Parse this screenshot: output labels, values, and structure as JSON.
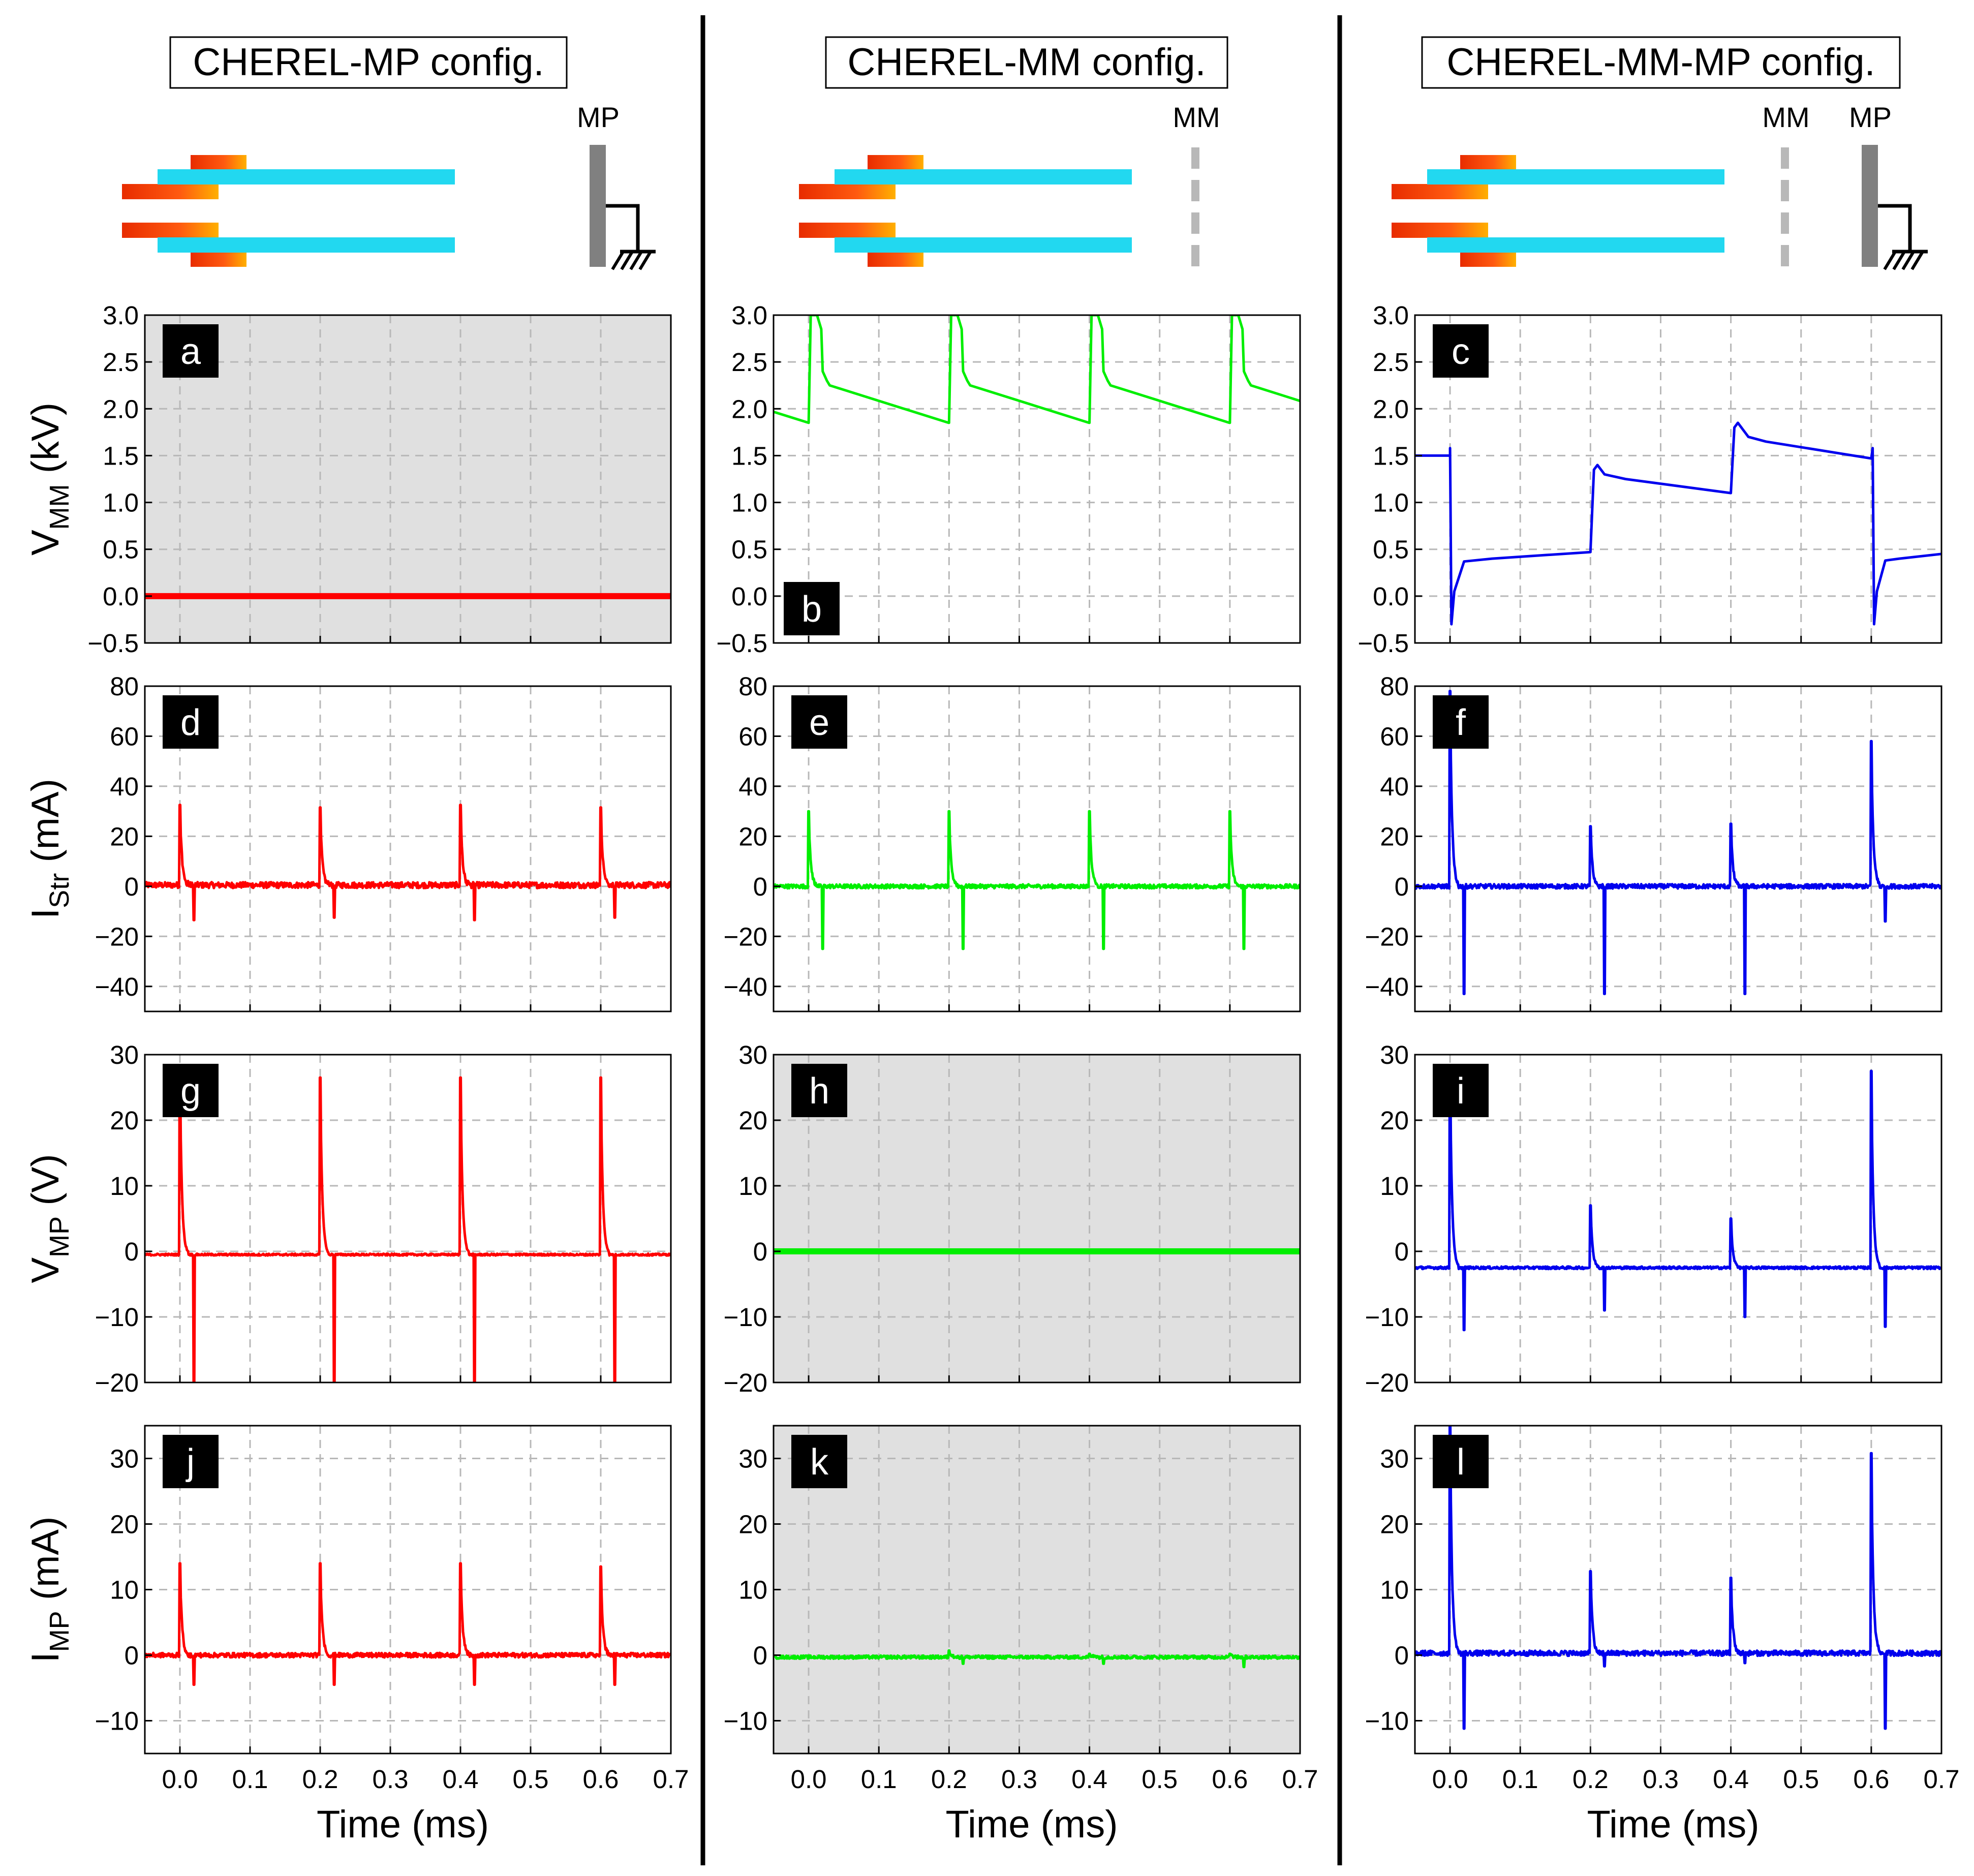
{
  "colors": {
    "mp": "#ff0000",
    "mm": "#00ee00",
    "mmmp": "#0000ee",
    "inactive_bg": "#e0e0e0",
    "grid": "#b8b8b8"
  },
  "columns": [
    {
      "title": "CHEREL-MP config.",
      "electrodes": [
        {
          "label": "MP",
          "type": "plate"
        }
      ]
    },
    {
      "title": "CHEREL-MM config.",
      "electrodes": [
        {
          "label": "MM",
          "type": "mesh"
        }
      ]
    },
    {
      "title": "CHEREL-MM-MP config.",
      "electrodes": [
        {
          "label": "MM",
          "type": "mesh"
        },
        {
          "label": "MP",
          "type": "plate"
        }
      ]
    }
  ],
  "x_axis": {
    "label": "Time (ms)",
    "range": [
      -0.05,
      0.7
    ],
    "ticks": [
      0.0,
      0.1,
      0.2,
      0.3,
      0.4,
      0.5,
      0.6,
      0.7
    ],
    "tick_labels": [
      "0.0",
      "0.1",
      "0.2",
      "0.3",
      "0.4",
      "0.5",
      "0.6",
      "0.7"
    ]
  },
  "rows": [
    {
      "ylabel_main": "V",
      "ylabel_sub": "MM",
      "ylabel_unit": " (kV)",
      "ylim": [
        -0.5,
        3.0
      ],
      "ticks": [
        -0.5,
        0.0,
        0.5,
        1.0,
        1.5,
        2.0,
        2.5,
        3.0
      ],
      "tick_labels": [
        "−0.5",
        "0.0",
        "0.5",
        "1.0",
        "1.5",
        "2.0",
        "2.5",
        "3.0"
      ]
    },
    {
      "ylabel_main": "I",
      "ylabel_sub": "Str",
      "ylabel_unit": " (mA)",
      "ylim": [
        -50,
        80
      ],
      "ticks": [
        -40,
        -20,
        0,
        20,
        40,
        60,
        80
      ],
      "tick_labels": [
        "−40",
        "−20",
        "0",
        "20",
        "40",
        "60",
        "80"
      ]
    },
    {
      "ylabel_main": "V",
      "ylabel_sub": "MP",
      "ylabel_unit": " (V)",
      "ylim": [
        -20,
        30
      ],
      "ticks": [
        -20,
        -10,
        0,
        10,
        20,
        30
      ],
      "tick_labels": [
        "−20",
        "−10",
        "0",
        "10",
        "20",
        "30"
      ]
    },
    {
      "ylabel_main": "I",
      "ylabel_sub": "MP",
      "ylabel_unit": " (mA)",
      "ylim": [
        -15,
        35
      ],
      "ticks": [
        -10,
        0,
        10,
        20,
        30
      ],
      "tick_labels": [
        "−10",
        "0",
        "10",
        "20",
        "30"
      ]
    }
  ],
  "chart_data": [
    {
      "type": "line",
      "panel": "a",
      "config": "CHEREL-MP config.",
      "ylabel": "V_MM (kV)",
      "inactive": true,
      "series": [
        {
          "name": "V_MM",
          "kind": "flat",
          "value": 0.0
        }
      ]
    },
    {
      "type": "line",
      "panel": "b",
      "config": "CHEREL-MM config.",
      "ylabel": "V_MM (kV)",
      "inactive": false,
      "series": [
        {
          "name": "V_MM",
          "kind": "sawtooth",
          "period_ms": 0.2,
          "first_pulse_ms": 0.0,
          "peak_kV": 3.0,
          "after_drop_kV": 2.25,
          "before_pulse_kV": 1.85
        }
      ]
    },
    {
      "type": "line",
      "panel": "c",
      "config": "CHEREL-MM-MP config.",
      "ylabel": "V_MM (kV)",
      "inactive": false,
      "series": [
        {
          "name": "V_MM",
          "kind": "steps",
          "points": [
            [
              -0.05,
              1.5
            ],
            [
              0.0,
              1.5
            ],
            [
              0.0,
              1.58
            ],
            [
              0.002,
              -0.3
            ],
            [
              0.006,
              0.05
            ],
            [
              0.02,
              0.37
            ],
            [
              0.06,
              0.4
            ],
            [
              0.2,
              0.47
            ],
            [
              0.205,
              1.35
            ],
            [
              0.21,
              1.4
            ],
            [
              0.22,
              1.3
            ],
            [
              0.25,
              1.25
            ],
            [
              0.4,
              1.1
            ],
            [
              0.405,
              1.8
            ],
            [
              0.41,
              1.85
            ],
            [
              0.425,
              1.7
            ],
            [
              0.45,
              1.65
            ],
            [
              0.6,
              1.47
            ],
            [
              0.602,
              1.58
            ],
            [
              0.604,
              -0.3
            ],
            [
              0.608,
              0.05
            ],
            [
              0.62,
              0.38
            ],
            [
              0.64,
              0.4
            ],
            [
              0.7,
              0.45
            ]
          ]
        }
      ]
    },
    {
      "type": "line",
      "panel": "d",
      "config": "CHEREL-MP config.",
      "ylabel": "I_Str (mA)",
      "inactive": false,
      "series": [
        {
          "name": "I_Str",
          "kind": "pulses",
          "baseline": 0.5,
          "noise": 1.2,
          "pulses": [
            {
              "t": 0.0,
              "amp": 32,
              "neg_t": 0.02,
              "neg": -14
            },
            {
              "t": 0.2,
              "amp": 31,
              "neg_t": 0.22,
              "neg": -13
            },
            {
              "t": 0.4,
              "amp": 32,
              "neg_t": 0.42,
              "neg": -14
            },
            {
              "t": 0.6,
              "amp": 31,
              "neg_t": 0.62,
              "neg": -13
            }
          ]
        }
      ]
    },
    {
      "type": "line",
      "panel": "e",
      "config": "CHEREL-MM config.",
      "ylabel": "I_Str (mA)",
      "inactive": false,
      "series": [
        {
          "name": "I_Str",
          "kind": "pulses",
          "baseline": 0.0,
          "noise": 0.8,
          "pulses": [
            {
              "t": 0.0,
              "amp": 30,
              "neg_t": 0.02,
              "neg": -25
            },
            {
              "t": 0.2,
              "amp": 30,
              "neg_t": 0.22,
              "neg": -25
            },
            {
              "t": 0.4,
              "amp": 30,
              "neg_t": 0.42,
              "neg": -25
            },
            {
              "t": 0.6,
              "amp": 30,
              "neg_t": 0.62,
              "neg": -25
            }
          ]
        }
      ]
    },
    {
      "type": "line",
      "panel": "f",
      "config": "CHEREL-MM-MP config.",
      "ylabel": "I_Str (mA)",
      "inactive": false,
      "series": [
        {
          "name": "I_Str",
          "kind": "pulses",
          "baseline": 0.0,
          "noise": 0.9,
          "pulses": [
            {
              "t": 0.0,
              "amp": 78,
              "neg_t": 0.02,
              "neg": -43
            },
            {
              "t": 0.2,
              "amp": 24,
              "neg_t": 0.22,
              "neg": -43
            },
            {
              "t": 0.4,
              "amp": 25,
              "neg_t": 0.42,
              "neg": -43
            },
            {
              "t": 0.6,
              "amp": 58,
              "neg_t": 0.62,
              "neg": -14
            }
          ]
        }
      ]
    },
    {
      "type": "line",
      "panel": "g",
      "config": "CHEREL-MP config.",
      "ylabel": "V_MP (V)",
      "inactive": false,
      "series": [
        {
          "name": "V_MP",
          "kind": "pulses",
          "baseline": -0.5,
          "noise": 0.15,
          "pulses": [
            {
              "t": 0.0,
              "amp": 27,
              "neg_t": 0.02,
              "neg": -20
            },
            {
              "t": 0.2,
              "amp": 27,
              "neg_t": 0.22,
              "neg": -20
            },
            {
              "t": 0.4,
              "amp": 27,
              "neg_t": 0.42,
              "neg": -20
            },
            {
              "t": 0.6,
              "amp": 27,
              "neg_t": 0.62,
              "neg": -20
            }
          ]
        }
      ]
    },
    {
      "type": "line",
      "panel": "h",
      "config": "CHEREL-MM config.",
      "ylabel": "V_MP (V)",
      "inactive": true,
      "series": [
        {
          "name": "V_MP",
          "kind": "flat",
          "value": 0.0
        }
      ]
    },
    {
      "type": "line",
      "panel": "i",
      "config": "CHEREL-MM-MP config.",
      "ylabel": "V_MP (V)",
      "inactive": false,
      "series": [
        {
          "name": "V_MP",
          "kind": "pulses",
          "baseline": -2.5,
          "noise": 0.2,
          "pulses": [
            {
              "t": 0.0,
              "amp": 30,
              "neg_t": 0.02,
              "neg": -9.5
            },
            {
              "t": 0.2,
              "amp": 9.5,
              "neg_t": 0.22,
              "neg": -6.5
            },
            {
              "t": 0.4,
              "amp": 7.5,
              "neg_t": 0.42,
              "neg": -7.5
            },
            {
              "t": 0.6,
              "amp": 30,
              "neg_t": 0.62,
              "neg": -9
            }
          ]
        }
      ]
    },
    {
      "type": "line",
      "panel": "j",
      "config": "CHEREL-MP config.",
      "ylabel": "I_MP (mA)",
      "inactive": false,
      "series": [
        {
          "name": "I_MP",
          "kind": "pulses",
          "baseline": 0.0,
          "noise": 0.35,
          "pulses": [
            {
              "t": 0.0,
              "amp": 14,
              "neg_t": 0.02,
              "neg": -4.5
            },
            {
              "t": 0.2,
              "amp": 14,
              "neg_t": 0.22,
              "neg": -4.5
            },
            {
              "t": 0.4,
              "amp": 14,
              "neg_t": 0.42,
              "neg": -4.5
            },
            {
              "t": 0.6,
              "amp": 13.5,
              "neg_t": 0.62,
              "neg": -4.5
            }
          ]
        }
      ]
    },
    {
      "type": "line",
      "panel": "k",
      "config": "CHEREL-MM config.",
      "ylabel": "I_MP (mA)",
      "inactive": true,
      "series": [
        {
          "name": "I_MP",
          "kind": "pulses",
          "baseline": -0.3,
          "noise": 0.25,
          "pulses": [
            {
              "t": 0.2,
              "amp": 1.0,
              "neg_t": 0.22,
              "neg": -1.0
            },
            {
              "t": 0.4,
              "amp": 0.5,
              "neg_t": 0.42,
              "neg": -1.0
            },
            {
              "t": 0.6,
              "amp": 0.5,
              "neg_t": 0.62,
              "neg": -1.5
            }
          ]
        }
      ]
    },
    {
      "type": "line",
      "panel": "l",
      "config": "CHEREL-MM-MP config.",
      "ylabel": "I_MP (mA)",
      "inactive": false,
      "series": [
        {
          "name": "I_MP",
          "kind": "pulses",
          "baseline": 0.3,
          "noise": 0.4,
          "pulses": [
            {
              "t": 0.0,
              "amp": 35,
              "neg_t": 0.02,
              "neg": -11.5
            },
            {
              "t": 0.2,
              "amp": 12.5,
              "neg_t": 0.22,
              "neg": -2
            },
            {
              "t": 0.4,
              "amp": 11.5,
              "neg_t": 0.42,
              "neg": -1.5
            },
            {
              "t": 0.6,
              "amp": 30.5,
              "neg_t": 0.62,
              "neg": -11.5
            }
          ]
        }
      ]
    }
  ]
}
